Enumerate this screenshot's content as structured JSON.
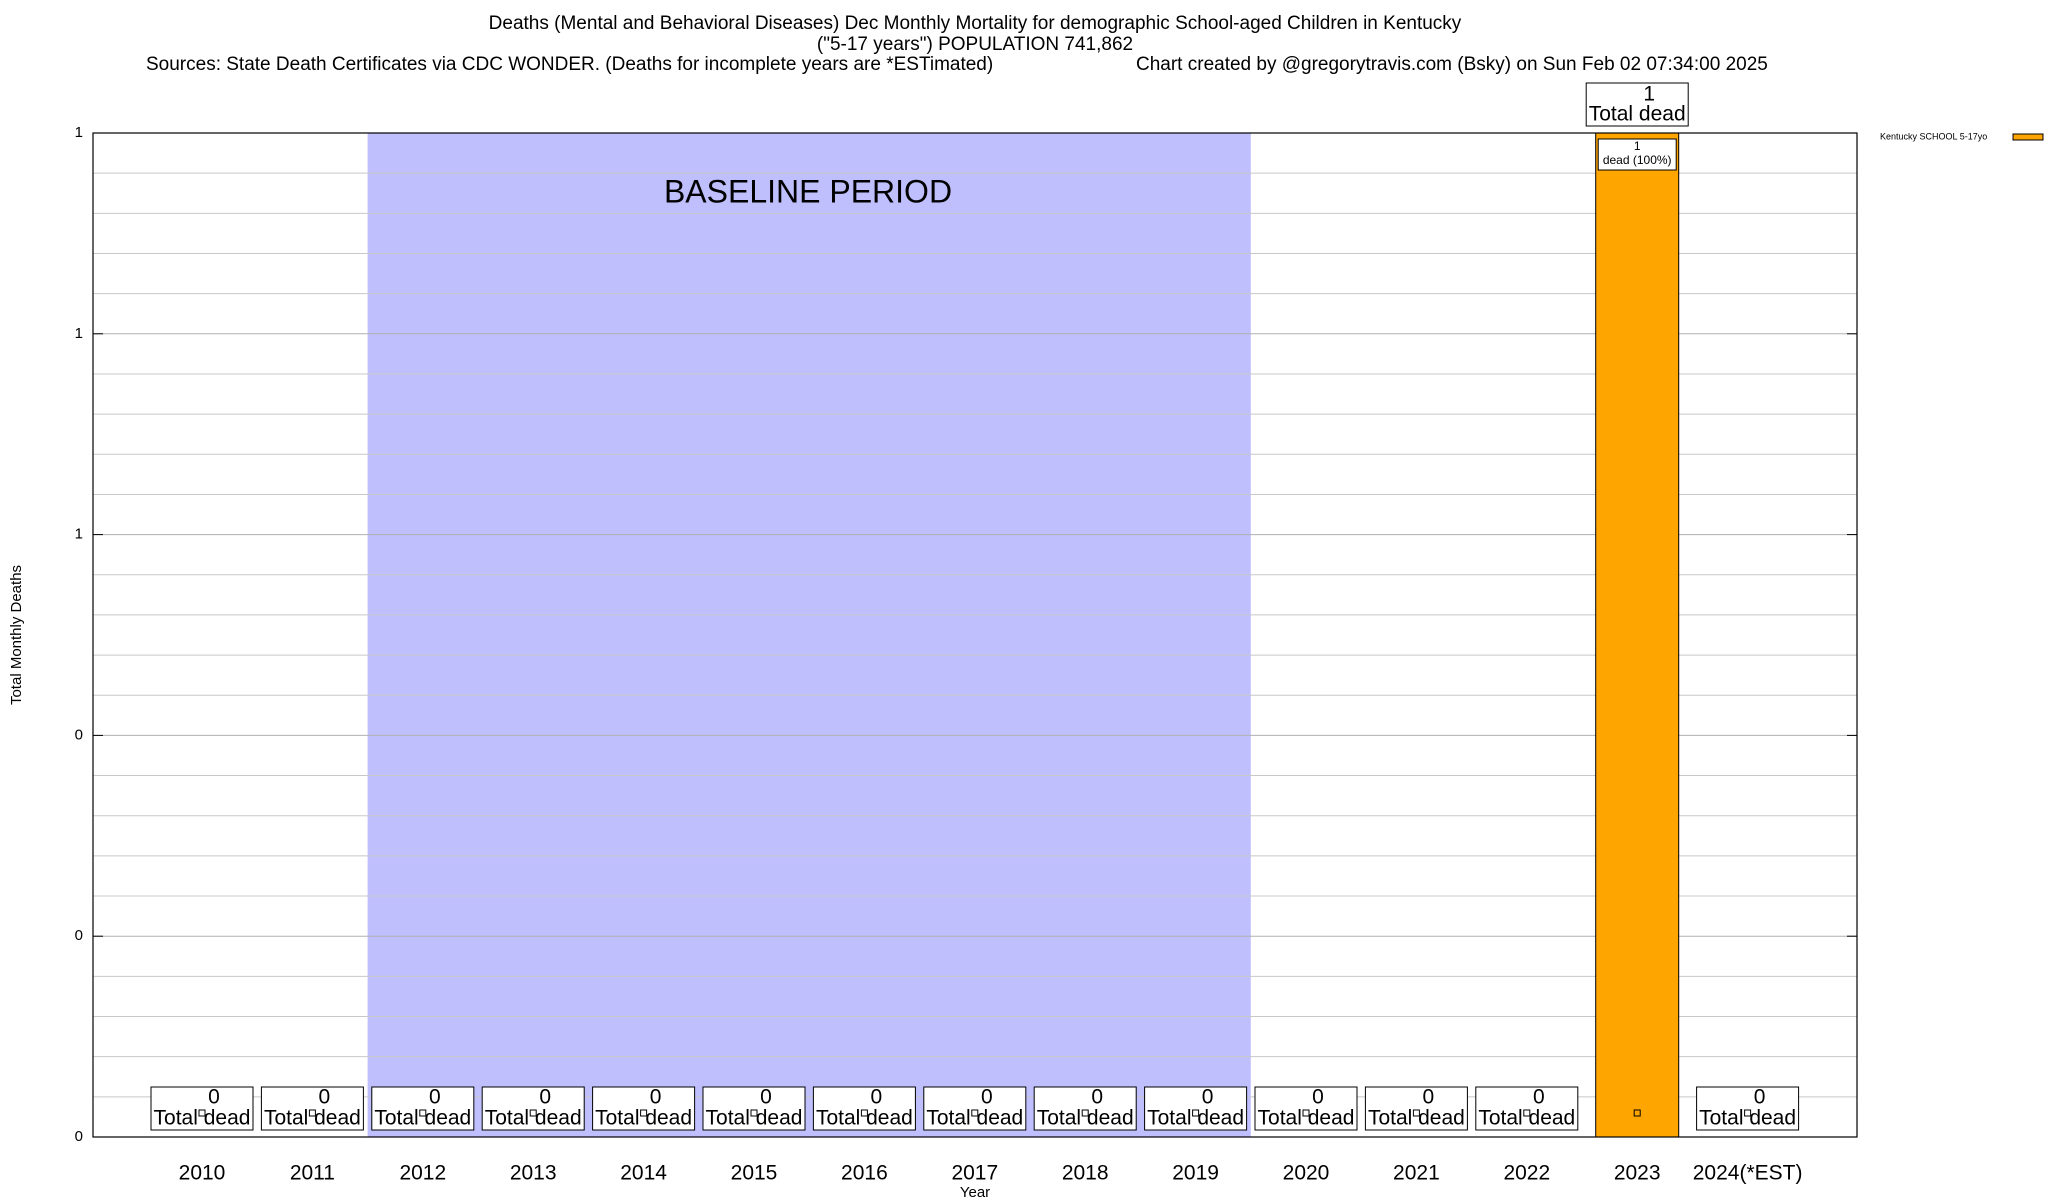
{
  "chart_data": {
    "type": "bar",
    "title": "Deaths (Mental and Behavioral Diseases) Dec Monthly Mortality for demographic School-aged Children in Kentucky",
    "subtitle": "(\"5-17 years\") POPULATION 741,862",
    "source": "Sources: State Death Certificates via CDC WONDER. (Deaths for incomplete years are *ESTimated)",
    "credit": "Chart created by @gregorytravis.com (Bsky) on Sun Feb 02 07:34:00 2025",
    "x_label": "Year",
    "y_label": "Total Monthly Deaths",
    "annotation": "BASELINE PERIOD",
    "total_label": "Total dead",
    "categories": [
      "2010",
      "2011",
      "2012",
      "2013",
      "2014",
      "2015",
      "2016",
      "2017",
      "2018",
      "2019",
      "2020",
      "2021",
      "2022",
      "2023",
      "2024(*EST)"
    ],
    "series": [
      {
        "name": "Kentucky SCHOOL 5-17yo",
        "color": "#ffa500",
        "values": [
          0,
          0,
          0,
          0,
          0,
          0,
          0,
          0,
          0,
          0,
          0,
          0,
          0,
          1,
          0
        ],
        "share_labels": [
          null,
          null,
          null,
          null,
          null,
          null,
          null,
          null,
          null,
          null,
          null,
          null,
          null,
          "dead (100%)",
          null
        ]
      }
    ],
    "ylim": [
      0,
      1
    ],
    "yticks": [
      0,
      {
        "value": 0.2,
        "label": "0"
      },
      {
        "value": 0.4,
        "label": "0"
      },
      {
        "value": 0.6,
        "label": "1"
      },
      {
        "value": 0.8,
        "label": "1"
      },
      1
    ],
    "minor_yticks": [
      0.04,
      0.08,
      0.12,
      0.16,
      0.24,
      0.28,
      0.32,
      0.36,
      0.44,
      0.48,
      0.52,
      0.56,
      0.64,
      0.68,
      0.72,
      0.76,
      0.84,
      0.88,
      0.92,
      0.96
    ],
    "grid": true,
    "legend": "top-right"
  }
}
